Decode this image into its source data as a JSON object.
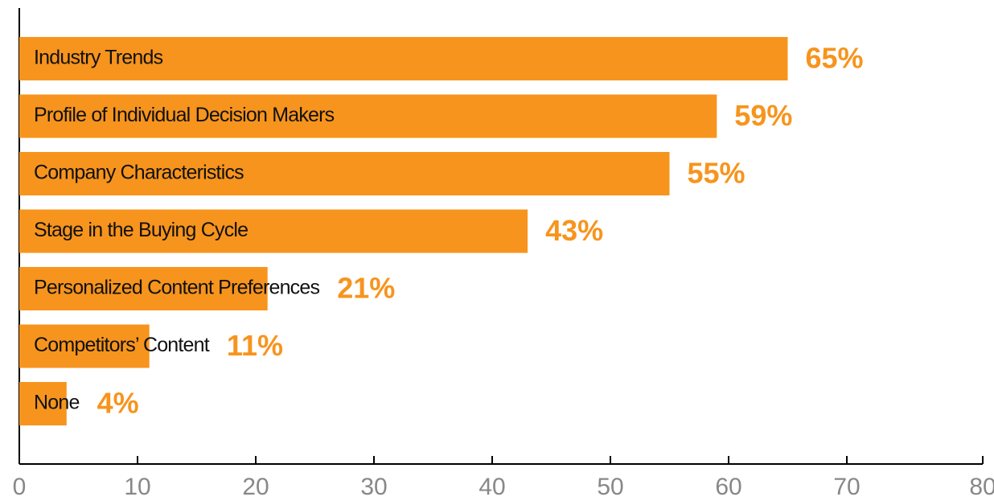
{
  "chart_data": {
    "type": "bar",
    "orientation": "horizontal",
    "categories": [
      "Industry Trends",
      "Profile of Individual Decision Makers",
      "Company Characteristics",
      "Stage in the Buying Cycle",
      "Personalized Content Preferences",
      "Competitors’ Content",
      "None"
    ],
    "values": [
      65,
      59,
      55,
      43,
      21,
      11,
      4
    ],
    "value_labels": [
      "65%",
      "59%",
      "55%",
      "43%",
      "21%",
      "11%",
      "4%"
    ],
    "color": "#f7941d",
    "xlim": [
      0,
      80
    ],
    "xticks": [
      0,
      10,
      20,
      30,
      40,
      50,
      60,
      70,
      80
    ]
  }
}
